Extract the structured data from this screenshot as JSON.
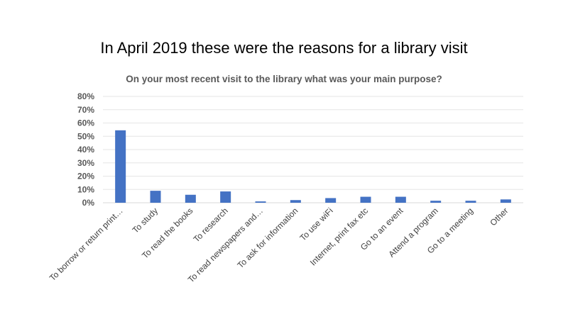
{
  "slide": {
    "title": "In April 2019 these were the reasons for a library visit"
  },
  "chart_data": {
    "type": "bar",
    "title": "On your most recent visit to the library what was your main purpose?",
    "xlabel": "",
    "ylabel": "",
    "ylim": [
      0,
      0.8
    ],
    "yticks": [
      "0%",
      "10%",
      "20%",
      "30%",
      "40%",
      "50%",
      "60%",
      "70%",
      "80%"
    ],
    "grid": true,
    "legend": "none",
    "bar_color": "#4472C4",
    "categories": [
      "To borrow or return print…",
      "To study",
      "To read the books",
      "To research",
      "To read newspapers and…",
      "To ask for information",
      "To use wiFi",
      "Internet, print fax etc",
      "Go to an event",
      "Attend a program",
      "Go to a meeting",
      "Other"
    ],
    "values": [
      0.545,
      0.09,
      0.06,
      0.085,
      0.01,
      0.02,
      0.035,
      0.045,
      0.045,
      0.015,
      0.015,
      0.025
    ]
  }
}
